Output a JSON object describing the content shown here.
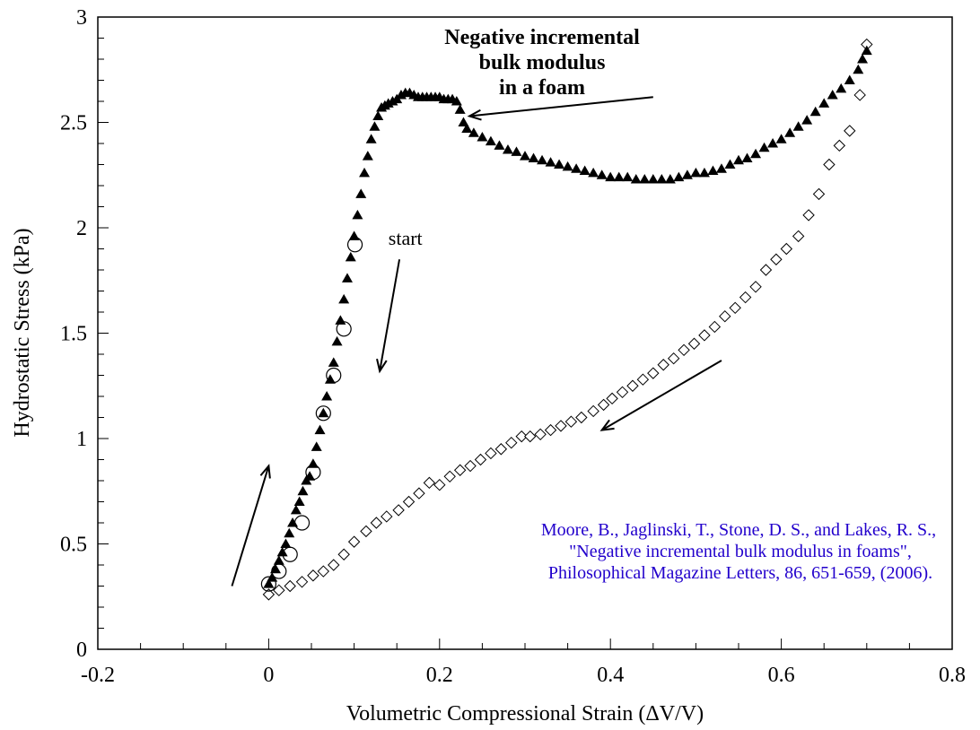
{
  "chart_data": {
    "type": "scatter",
    "title": "",
    "xlabel": "Volumetric Compressional Strain (ΔV/V)",
    "ylabel": "Hydrostatic Stress (kPa)",
    "xlim": [
      -0.2,
      0.8
    ],
    "ylim": [
      0,
      3
    ],
    "x_ticks": [
      -0.2,
      0,
      0.2,
      0.4,
      0.6,
      0.8
    ],
    "x_tick_labels": [
      "-0.2",
      "0",
      "0.2",
      "0.4",
      "0.6",
      "0.8"
    ],
    "x_minor_step": 0.05,
    "y_ticks": [
      0,
      0.5,
      1,
      1.5,
      2,
      2.5,
      3
    ],
    "y_tick_labels": [
      "0",
      "0.5",
      "1",
      "1.5",
      "2",
      "2.5",
      "3"
    ],
    "y_minor_step": 0.1,
    "grid": false,
    "legend": "none",
    "series": [
      {
        "name": "loading (filled triangles)",
        "marker": "triangle-filled",
        "color": "#000000",
        "x": [
          0.0,
          0.004,
          0.008,
          0.012,
          0.016,
          0.02,
          0.024,
          0.028,
          0.032,
          0.036,
          0.04,
          0.044,
          0.048,
          0.052,
          0.056,
          0.06,
          0.064,
          0.068,
          0.072,
          0.076,
          0.08,
          0.084,
          0.088,
          0.092,
          0.096,
          0.1,
          0.104,
          0.108,
          0.112,
          0.116,
          0.12,
          0.124,
          0.128,
          0.132,
          0.136,
          0.14,
          0.145,
          0.15,
          0.155,
          0.16,
          0.165,
          0.17,
          0.175,
          0.18,
          0.185,
          0.19,
          0.195,
          0.2,
          0.205,
          0.21,
          0.215,
          0.22,
          0.224,
          0.228,
          0.232,
          0.24,
          0.25,
          0.26,
          0.27,
          0.28,
          0.29,
          0.3,
          0.31,
          0.32,
          0.33,
          0.34,
          0.35,
          0.36,
          0.37,
          0.38,
          0.39,
          0.4,
          0.41,
          0.42,
          0.43,
          0.44,
          0.45,
          0.46,
          0.47,
          0.48,
          0.49,
          0.5,
          0.51,
          0.52,
          0.53,
          0.54,
          0.55,
          0.56,
          0.57,
          0.58,
          0.59,
          0.6,
          0.61,
          0.62,
          0.63,
          0.64,
          0.65,
          0.66,
          0.67,
          0.68,
          0.69,
          0.695,
          0.7
        ],
        "y": [
          0.31,
          0.34,
          0.38,
          0.42,
          0.46,
          0.5,
          0.55,
          0.6,
          0.66,
          0.7,
          0.75,
          0.8,
          0.82,
          0.88,
          0.96,
          1.04,
          1.12,
          1.2,
          1.28,
          1.36,
          1.46,
          1.56,
          1.66,
          1.76,
          1.86,
          1.96,
          2.06,
          2.16,
          2.26,
          2.34,
          2.42,
          2.48,
          2.53,
          2.57,
          2.58,
          2.59,
          2.6,
          2.61,
          2.63,
          2.64,
          2.64,
          2.63,
          2.62,
          2.62,
          2.62,
          2.62,
          2.62,
          2.62,
          2.61,
          2.61,
          2.61,
          2.6,
          2.56,
          2.5,
          2.47,
          2.45,
          2.43,
          2.41,
          2.39,
          2.37,
          2.36,
          2.34,
          2.33,
          2.32,
          2.31,
          2.3,
          2.29,
          2.28,
          2.27,
          2.26,
          2.25,
          2.24,
          2.24,
          2.24,
          2.23,
          2.23,
          2.23,
          2.23,
          2.23,
          2.24,
          2.25,
          2.26,
          2.26,
          2.27,
          2.28,
          2.3,
          2.32,
          2.33,
          2.35,
          2.38,
          2.4,
          2.42,
          2.45,
          2.48,
          2.51,
          2.55,
          2.59,
          2.63,
          2.66,
          2.7,
          2.75,
          2.8,
          2.84
        ]
      },
      {
        "name": "unloading (open diamonds)",
        "marker": "diamond-open",
        "color": "#000000",
        "x": [
          0.0,
          0.012,
          0.025,
          0.039,
          0.052,
          0.064,
          0.076,
          0.088,
          0.1,
          0.114,
          0.126,
          0.138,
          0.152,
          0.164,
          0.176,
          0.188,
          0.2,
          0.212,
          0.224,
          0.236,
          0.248,
          0.26,
          0.272,
          0.284,
          0.296,
          0.306,
          0.318,
          0.33,
          0.342,
          0.354,
          0.366,
          0.38,
          0.392,
          0.402,
          0.414,
          0.426,
          0.438,
          0.45,
          0.462,
          0.474,
          0.486,
          0.498,
          0.51,
          0.522,
          0.534,
          0.546,
          0.558,
          0.57,
          0.582,
          0.594,
          0.606,
          0.62,
          0.632,
          0.644,
          0.656,
          0.668,
          0.68,
          0.692,
          0.7
        ],
        "y": [
          0.26,
          0.28,
          0.3,
          0.32,
          0.35,
          0.37,
          0.4,
          0.45,
          0.51,
          0.56,
          0.6,
          0.63,
          0.66,
          0.7,
          0.74,
          0.79,
          0.78,
          0.82,
          0.85,
          0.87,
          0.9,
          0.93,
          0.95,
          0.98,
          1.01,
          1.01,
          1.02,
          1.04,
          1.06,
          1.08,
          1.1,
          1.13,
          1.16,
          1.19,
          1.22,
          1.25,
          1.28,
          1.31,
          1.35,
          1.38,
          1.42,
          1.45,
          1.49,
          1.53,
          1.58,
          1.62,
          1.67,
          1.72,
          1.8,
          1.85,
          1.9,
          1.96,
          2.06,
          2.16,
          2.3,
          2.39,
          2.46,
          2.63,
          2.87
        ]
      },
      {
        "name": "highlighted points (open circles)",
        "marker": "circle-open",
        "color": "#000000",
        "x": [
          0.0,
          0.012,
          0.025,
          0.039,
          0.052,
          0.064,
          0.076,
          0.088,
          0.101
        ],
        "y": [
          0.31,
          0.37,
          0.45,
          0.6,
          0.84,
          1.12,
          1.3,
          1.52,
          1.92
        ]
      }
    ],
    "annotations": [
      {
        "id": "nibm-label",
        "lines": [
          "Negative incremental",
          "bulk modulus",
          "in a foam"
        ],
        "bold": true,
        "anchor": [
          0.32,
          2.72
        ],
        "arrow_from": [
          0.45,
          2.62
        ],
        "arrow_to": [
          0.235,
          2.53
        ]
      },
      {
        "id": "start-label",
        "lines": [
          "start"
        ],
        "bold": false,
        "anchor": [
          0.16,
          1.92
        ],
        "arrow_from": [
          0.153,
          1.85
        ],
        "arrow_to": [
          0.13,
          1.32
        ]
      },
      {
        "id": "loading-arrow",
        "lines": [],
        "arrow_from": [
          -0.043,
          0.3
        ],
        "arrow_to": [
          -0.0,
          0.87
        ]
      },
      {
        "id": "unloading-arrow",
        "lines": [],
        "arrow_from": [
          0.53,
          1.37
        ],
        "arrow_to": [
          0.39,
          1.04
        ]
      }
    ],
    "citation": {
      "color": "#2200cc",
      "anchor": [
        0.55,
        0.55
      ],
      "lines": [
        "Moore, B., Jaglinski, T., Stone, D. S., and Lakes, R. S.,",
        "\"Negative incremental bulk modulus in foams\",",
        "Philosophical Magazine Letters, 86, 651-659, (2006)."
      ]
    }
  }
}
